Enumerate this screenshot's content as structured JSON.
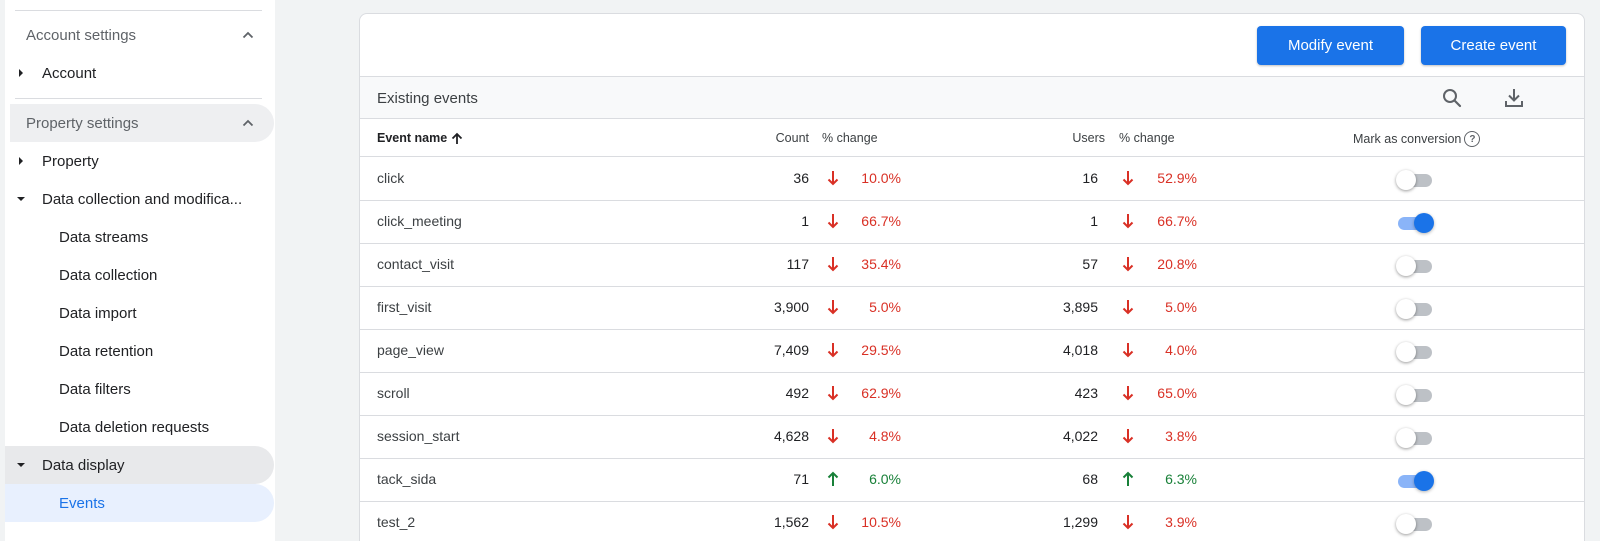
{
  "sidebar": {
    "account_section": "Account settings",
    "account_item": "Account",
    "property_section": "Property settings",
    "property_item": "Property",
    "data_collection_item": "Data collection and modifica...",
    "data_streams": "Data streams",
    "data_collection": "Data collection",
    "data_import": "Data import",
    "data_retention": "Data retention",
    "data_filters": "Data filters",
    "data_deletion": "Data deletion requests",
    "data_display": "Data display",
    "events": "Events"
  },
  "actions": {
    "modify_event": "Modify event",
    "create_event": "Create event"
  },
  "table": {
    "title": "Existing events",
    "headers": {
      "event_name": "Event name",
      "count": "Count",
      "count_change": "% change",
      "users": "Users",
      "users_change": "% change",
      "conversion": "Mark as conversion"
    },
    "rows": [
      {
        "name": "click",
        "count": "36",
        "count_change": "10.0%",
        "count_dir": "down",
        "users": "16",
        "users_change": "52.9%",
        "users_dir": "down",
        "conversion": false
      },
      {
        "name": "click_meeting",
        "count": "1",
        "count_change": "66.7%",
        "count_dir": "down",
        "users": "1",
        "users_change": "66.7%",
        "users_dir": "down",
        "conversion": true
      },
      {
        "name": "contact_visit",
        "count": "117",
        "count_change": "35.4%",
        "count_dir": "down",
        "users": "57",
        "users_change": "20.8%",
        "users_dir": "down",
        "conversion": false
      },
      {
        "name": "first_visit",
        "count": "3,900",
        "count_change": "5.0%",
        "count_dir": "down",
        "users": "3,895",
        "users_change": "5.0%",
        "users_dir": "down",
        "conversion": false
      },
      {
        "name": "page_view",
        "count": "7,409",
        "count_change": "29.5%",
        "count_dir": "down",
        "users": "4,018",
        "users_change": "4.0%",
        "users_dir": "down",
        "conversion": false
      },
      {
        "name": "scroll",
        "count": "492",
        "count_change": "62.9%",
        "count_dir": "down",
        "users": "423",
        "users_change": "65.0%",
        "users_dir": "down",
        "conversion": false
      },
      {
        "name": "session_start",
        "count": "4,628",
        "count_change": "4.8%",
        "count_dir": "down",
        "users": "4,022",
        "users_change": "3.8%",
        "users_dir": "down",
        "conversion": false
      },
      {
        "name": "tack_sida",
        "count": "71",
        "count_change": "6.0%",
        "count_dir": "up",
        "users": "68",
        "users_change": "6.3%",
        "users_dir": "up",
        "conversion": true
      },
      {
        "name": "test_2",
        "count": "1,562",
        "count_change": "10.5%",
        "count_dir": "down",
        "users": "1,299",
        "users_change": "3.9%",
        "users_dir": "down",
        "conversion": false
      }
    ]
  },
  "colors": {
    "accent": "#1a73e8",
    "down": "#d93025",
    "up": "#188038"
  }
}
